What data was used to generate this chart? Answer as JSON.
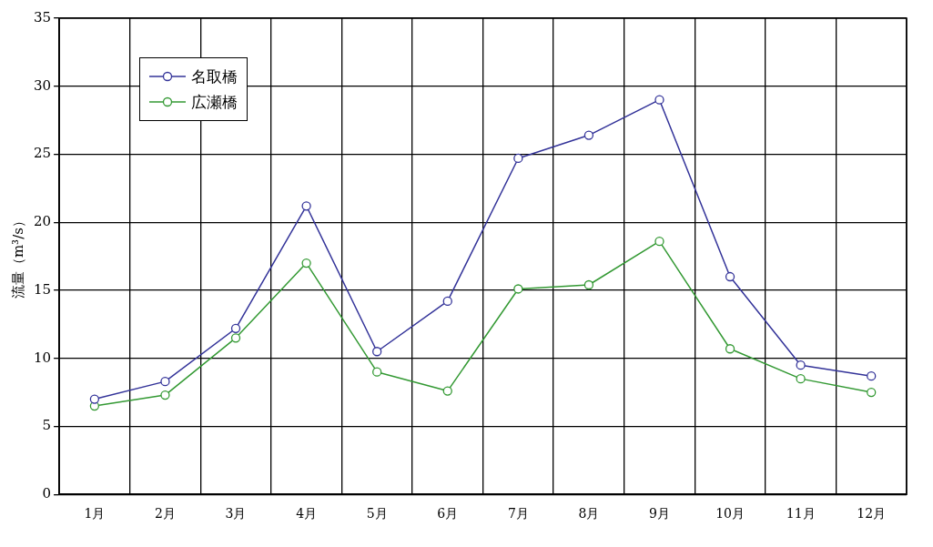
{
  "chart_data": {
    "type": "line",
    "ylabel": "流量（m³/s）",
    "categories": [
      "1月",
      "2月",
      "3月",
      "4月",
      "5月",
      "6月",
      "7月",
      "8月",
      "9月",
      "10月",
      "11月",
      "12月"
    ],
    "series": [
      {
        "name": "名取橋",
        "color": "#333399",
        "values": [
          7.0,
          8.3,
          12.2,
          21.2,
          10.5,
          14.2,
          24.7,
          26.4,
          29.0,
          16.0,
          9.5,
          8.7
        ]
      },
      {
        "name": "広瀬橋",
        "color": "#339933",
        "values": [
          6.5,
          7.3,
          11.5,
          17.0,
          9.0,
          7.6,
          15.1,
          15.4,
          18.6,
          10.7,
          8.5,
          7.5
        ]
      }
    ],
    "ylim": [
      0,
      35
    ],
    "yticks": [
      0,
      5,
      10,
      15,
      20,
      25,
      30,
      35
    ],
    "grid": true,
    "legend": "top left",
    "marker": "circle",
    "line_style": "solid"
  }
}
